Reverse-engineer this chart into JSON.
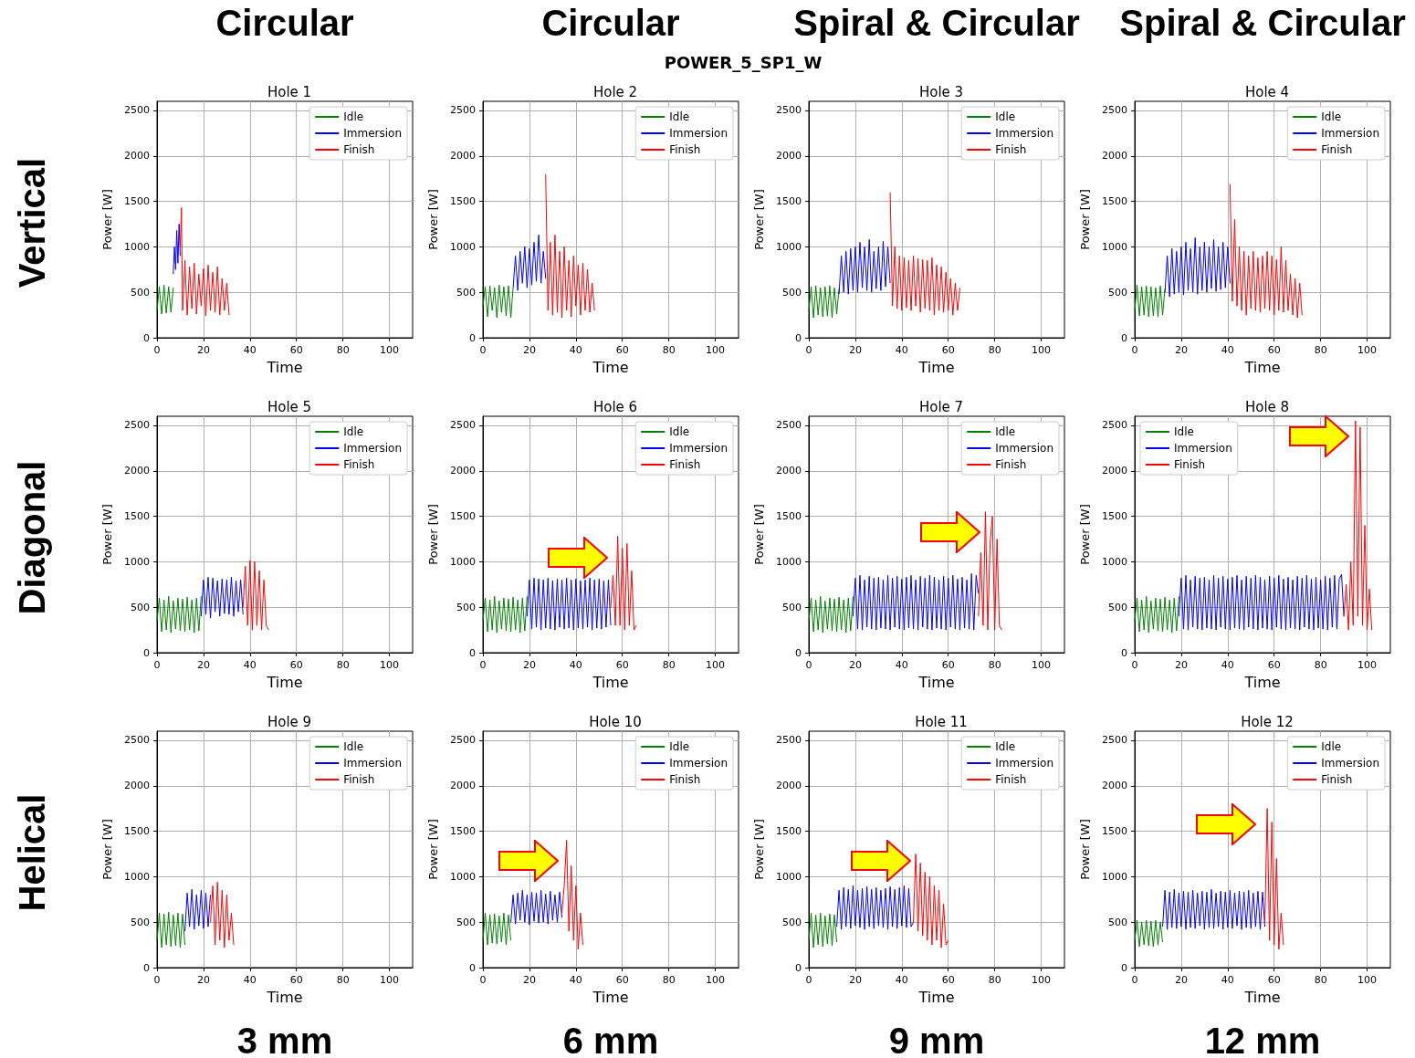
{
  "chart_data": [
    {
      "type": "line",
      "title": "Hole 1",
      "xlabel": "Time",
      "ylabel": "Power [W]",
      "xlim": [
        0,
        110
      ],
      "ylim": [
        0,
        2600
      ],
      "xticks": [
        0,
        20,
        40,
        60,
        80,
        100
      ],
      "yticks": [
        0,
        500,
        1000,
        1500,
        2000,
        2500
      ],
      "grid": true,
      "legend": "top right",
      "annotations": [
        "Circular",
        "Vertical"
      ],
      "series": [
        {
          "name": "Idle",
          "color": "#008000",
          "x": [
            0,
            1,
            2,
            3,
            4,
            5,
            6,
            7
          ],
          "values": [
            300,
            560,
            260,
            580,
            270,
            560,
            280,
            550
          ]
        },
        {
          "name": "Immersion",
          "color": "#0000ff",
          "x": [
            7,
            7.5,
            8,
            8.5,
            9,
            9.5,
            10
          ],
          "values": [
            700,
            1000,
            750,
            1180,
            820,
            1250,
            900
          ]
        },
        {
          "name": "Finish",
          "color": "#ff0000",
          "x": [
            10,
            10.5,
            11,
            12,
            13,
            14,
            15,
            16,
            17,
            18,
            19,
            20,
            21,
            22,
            23,
            24,
            25,
            26,
            27,
            28,
            29,
            30,
            31
          ],
          "values": [
            1000,
            1430,
            300,
            850,
            250,
            780,
            320,
            820,
            260,
            700,
            350,
            760,
            240,
            800,
            300,
            720,
            280,
            780,
            250,
            650,
            300,
            600,
            250
          ]
        }
      ]
    },
    {
      "type": "line",
      "title": "Hole 2",
      "xlabel": "Time",
      "ylabel": "Power [W]",
      "xlim": [
        0,
        110
      ],
      "ylim": [
        0,
        2600
      ],
      "xticks": [
        0,
        20,
        40,
        60,
        80,
        100
      ],
      "yticks": [
        0,
        500,
        1000,
        1500,
        2000,
        2500
      ],
      "grid": true,
      "legend": "top right",
      "annotations": [
        "Circular",
        "POWER_5_SP1_W"
      ],
      "series": [
        {
          "name": "Idle",
          "color": "#008000",
          "x": [
            0,
            1,
            2,
            3,
            4,
            5,
            6,
            7,
            8,
            9,
            10,
            11,
            12,
            13
          ],
          "values": [
            350,
            560,
            230,
            570,
            300,
            550,
            220,
            580,
            280,
            560,
            240,
            570,
            220,
            550
          ]
        },
        {
          "name": "Immersion",
          "color": "#0000ff",
          "x": [
            13,
            14,
            15,
            16,
            17,
            18,
            19,
            20,
            21,
            22,
            23,
            24,
            25,
            26,
            27
          ],
          "values": [
            550,
            900,
            520,
            950,
            600,
            1000,
            550,
            980,
            580,
            1050,
            620,
            1130,
            600,
            950,
            650
          ]
        },
        {
          "name": "Finish",
          "color": "#ff0000",
          "x": [
            27,
            28,
            29,
            30,
            31,
            32,
            33,
            34,
            35,
            36,
            37,
            38,
            39,
            40,
            41,
            42,
            43,
            44,
            45,
            46,
            47,
            48
          ],
          "values": [
            1800,
            300,
            1050,
            250,
            1130,
            280,
            950,
            220,
            1000,
            300,
            850,
            230,
            900,
            350,
            800,
            250,
            820,
            300,
            750,
            280,
            600,
            300
          ]
        }
      ]
    },
    {
      "type": "line",
      "title": "Hole 3",
      "xlabel": "Time",
      "ylabel": "Power [W]",
      "xlim": [
        0,
        110
      ],
      "ylim": [
        0,
        2600
      ],
      "xticks": [
        0,
        20,
        40,
        60,
        80,
        100
      ],
      "yticks": [
        0,
        500,
        1000,
        1500,
        2000,
        2500
      ],
      "grid": true,
      "legend": "top right",
      "annotations": [
        "Spiral & Circular"
      ],
      "series": [
        {
          "name": "Idle",
          "color": "#008000",
          "x": [
            0,
            1,
            2,
            3,
            4,
            5,
            6,
            7,
            8,
            9,
            10,
            11,
            12,
            13
          ],
          "values": [
            300,
            560,
            220,
            570,
            250,
            550,
            230,
            560,
            240,
            570,
            220,
            550,
            260,
            540
          ]
        },
        {
          "name": "Immersion",
          "color": "#0000ff",
          "x": [
            13,
            14,
            15,
            16,
            17,
            18,
            19,
            20,
            21,
            22,
            23,
            24,
            25,
            26,
            27,
            28,
            29,
            30,
            31,
            32,
            33,
            34,
            35
          ],
          "values": [
            480,
            900,
            500,
            950,
            480,
            980,
            520,
            1000,
            500,
            1050,
            550,
            1000,
            520,
            1080,
            500,
            950,
            540,
            1000,
            520,
            1060,
            560,
            1000,
            600
          ]
        },
        {
          "name": "Finish",
          "color": "#ff0000",
          "x": [
            35,
            36,
            37,
            38,
            39,
            40,
            41,
            42,
            43,
            44,
            45,
            46,
            47,
            48,
            49,
            50,
            51,
            52,
            53,
            54,
            55,
            56,
            57,
            58,
            59,
            60,
            61,
            62,
            63,
            64,
            65
          ],
          "values": [
            1600,
            350,
            1000,
            320,
            900,
            300,
            880,
            330,
            850,
            300,
            900,
            350,
            870,
            280,
            860,
            320,
            850,
            300,
            880,
            250,
            800,
            300,
            780,
            280,
            720,
            300,
            650,
            250,
            600,
            300,
            550
          ]
        }
      ]
    },
    {
      "type": "line",
      "title": "Hole 4",
      "xlabel": "Time",
      "ylabel": "Power [W]",
      "xlim": [
        0,
        110
      ],
      "ylim": [
        0,
        2600
      ],
      "xticks": [
        0,
        20,
        40,
        60,
        80,
        100
      ],
      "yticks": [
        0,
        500,
        1000,
        1500,
        2000,
        2500
      ],
      "grid": true,
      "legend": "top right",
      "annotations": [
        "Spiral & Circular"
      ],
      "series": [
        {
          "name": "Idle",
          "color": "#008000",
          "x": [
            0,
            1,
            2,
            3,
            4,
            5,
            6,
            7,
            8,
            9,
            10,
            11,
            12,
            13
          ],
          "values": [
            300,
            580,
            240,
            560,
            250,
            570,
            230,
            560,
            240,
            550,
            230,
            570,
            250,
            540
          ]
        },
        {
          "name": "Immersion",
          "color": "#0000ff",
          "x": [
            13,
            14,
            15,
            16,
            17,
            18,
            19,
            20,
            21,
            22,
            23,
            24,
            25,
            26,
            27,
            28,
            29,
            30,
            31,
            32,
            33,
            34,
            35,
            36,
            37,
            38,
            39,
            40,
            41
          ],
          "values": [
            500,
            900,
            450,
            980,
            480,
            950,
            500,
            1000,
            470,
            1050,
            520,
            980,
            500,
            1100,
            480,
            1000,
            520,
            1050,
            500,
            1000,
            540,
            1080,
            510,
            1000,
            530,
            1050,
            550,
            1000,
            600
          ]
        },
        {
          "name": "Finish",
          "color": "#ff0000",
          "x": [
            41,
            42,
            43,
            44,
            45,
            46,
            47,
            48,
            49,
            50,
            51,
            52,
            53,
            54,
            55,
            56,
            57,
            58,
            59,
            60,
            61,
            62,
            63,
            64,
            65,
            66,
            67,
            68,
            69,
            70,
            71,
            72
          ],
          "values": [
            1690,
            400,
            1300,
            350,
            1000,
            300,
            950,
            250,
            900,
            320,
            950,
            300,
            880,
            280,
            900,
            320,
            950,
            300,
            900,
            250,
            860,
            300,
            1000,
            280,
            850,
            300,
            700,
            250,
            650,
            220,
            600,
            250
          ]
        }
      ]
    },
    {
      "type": "line",
      "title": "Hole 5",
      "xlabel": "Time",
      "ylabel": "Power [W]",
      "xlim": [
        0,
        110
      ],
      "ylim": [
        0,
        2600
      ],
      "xticks": [
        0,
        20,
        40,
        60,
        80,
        100
      ],
      "yticks": [
        0,
        500,
        1000,
        1500,
        2000,
        2500
      ],
      "grid": true,
      "legend": "top right",
      "annotations": [
        "Diagonal"
      ],
      "series": [
        {
          "name": "Idle",
          "color": "#008000",
          "x": [
            0,
            1,
            2,
            3,
            4,
            5,
            6,
            7,
            8,
            9,
            10,
            11,
            12,
            13,
            14,
            15,
            16,
            17,
            18,
            19
          ],
          "values": [
            350,
            600,
            230,
            580,
            250,
            620,
            220,
            570,
            260,
            600,
            240,
            590,
            230,
            610,
            250,
            580,
            220,
            600,
            240,
            620
          ]
        },
        {
          "name": "Immersion",
          "color": "#0000ff",
          "x": [
            19,
            20,
            21,
            22,
            23,
            24,
            25,
            26,
            27,
            28,
            29,
            30,
            31,
            32,
            33,
            34,
            35,
            36,
            37
          ],
          "values": [
            400,
            800,
            420,
            830,
            380,
            820,
            450,
            790,
            400,
            810,
            430,
            800,
            420,
            830,
            400,
            790,
            450,
            800,
            420
          ]
        },
        {
          "name": "Finish",
          "color": "#ff0000",
          "x": [
            37,
            38,
            39,
            40,
            41,
            42,
            43,
            44,
            45,
            46,
            47,
            48
          ],
          "values": [
            500,
            950,
            300,
            1010,
            250,
            1000,
            300,
            900,
            250,
            800,
            300,
            250
          ]
        }
      ]
    },
    {
      "type": "line",
      "title": "Hole 6",
      "xlabel": "Time",
      "ylabel": "Power [W]",
      "xlim": [
        0,
        110
      ],
      "ylim": [
        0,
        2600
      ],
      "xticks": [
        0,
        20,
        40,
        60,
        80,
        100
      ],
      "yticks": [
        0,
        500,
        1000,
        1500,
        2000,
        2500
      ],
      "grid": true,
      "legend": "top right",
      "series": [
        {
          "name": "Idle",
          "color": "#008000",
          "x": [
            0,
            1,
            2,
            3,
            4,
            5,
            6,
            7,
            8,
            9,
            10,
            11,
            12,
            13,
            14,
            15,
            16,
            17,
            18,
            19
          ],
          "values": [
            350,
            600,
            230,
            580,
            250,
            620,
            220,
            570,
            260,
            600,
            240,
            590,
            230,
            610,
            250,
            580,
            220,
            600,
            240,
            620
          ]
        },
        {
          "name": "Immersion",
          "color": "#0000ff",
          "x": [
            19,
            20,
            21,
            22,
            23,
            24,
            25,
            26,
            27,
            28,
            29,
            30,
            31,
            32,
            33,
            34,
            35,
            36,
            37,
            38,
            39,
            40,
            41,
            42,
            43,
            44,
            45,
            46,
            47,
            48,
            49,
            50,
            51,
            52,
            53,
            54,
            55
          ],
          "values": [
            400,
            800,
            260,
            820,
            280,
            810,
            250,
            800,
            270,
            820,
            260,
            790,
            250,
            810,
            280,
            800,
            260,
            820,
            270,
            800,
            250,
            810,
            270,
            790,
            260,
            800,
            280,
            820,
            250,
            800,
            270,
            810,
            260,
            790,
            280,
            800,
            300
          ]
        },
        {
          "name": "Finish",
          "color": "#ff0000",
          "x": [
            55,
            56,
            57,
            58,
            59,
            60,
            61,
            62,
            63,
            64,
            65,
            66
          ],
          "values": [
            500,
            850,
            300,
            1280,
            300,
            1150,
            250,
            1200,
            300,
            900,
            250,
            300
          ]
        }
      ]
    },
    {
      "type": "line",
      "title": "Hole 7",
      "xlabel": "Time",
      "ylabel": "Power [W]",
      "xlim": [
        0,
        110
      ],
      "ylim": [
        0,
        2600
      ],
      "xticks": [
        0,
        20,
        40,
        60,
        80,
        100
      ],
      "yticks": [
        0,
        500,
        1000,
        1500,
        2000,
        2500
      ],
      "grid": true,
      "legend": "top right",
      "series": [
        {
          "name": "Idle",
          "color": "#008000",
          "x": [
            0,
            1,
            2,
            3,
            4,
            5,
            6,
            7,
            8,
            9,
            10,
            11,
            12,
            13,
            14,
            15,
            16,
            17,
            18,
            19
          ],
          "values": [
            350,
            600,
            230,
            580,
            250,
            620,
            220,
            570,
            260,
            600,
            240,
            590,
            230,
            610,
            250,
            580,
            220,
            600,
            240,
            620
          ]
        },
        {
          "name": "Immersion",
          "color": "#0000ff",
          "x": [
            19,
            20,
            21,
            22,
            23,
            24,
            25,
            26,
            27,
            28,
            29,
            30,
            31,
            32,
            33,
            34,
            35,
            36,
            37,
            38,
            39,
            40,
            41,
            42,
            43,
            44,
            45,
            46,
            47,
            48,
            49,
            50,
            51,
            52,
            53,
            54,
            55,
            56,
            57,
            58,
            59,
            60,
            61,
            62,
            63,
            64,
            65,
            66,
            67,
            68,
            69,
            70,
            71,
            72,
            73
          ],
          "values": [
            400,
            820,
            260,
            850,
            250,
            800,
            280,
            840,
            260,
            820,
            250,
            830,
            270,
            800,
            260,
            850,
            250,
            820,
            280,
            840,
            260,
            810,
            250,
            830,
            270,
            850,
            260,
            800,
            250,
            840,
            280,
            820,
            260,
            850,
            250,
            830,
            270,
            800,
            260,
            840,
            250,
            820,
            280,
            850,
            260,
            810,
            250,
            830,
            270,
            800,
            260,
            870,
            250,
            850,
            650
          ]
        },
        {
          "name": "Finish",
          "color": "#ff0000",
          "x": [
            73,
            74,
            75,
            76,
            77,
            78,
            79,
            80,
            81,
            82,
            83
          ],
          "values": [
            400,
            1100,
            300,
            1550,
            250,
            1200,
            1500,
            250,
            1250,
            300,
            250
          ]
        }
      ]
    },
    {
      "type": "line",
      "title": "Hole 8",
      "xlabel": "Time",
      "ylabel": "Power [W]",
      "xlim": [
        0,
        110
      ],
      "ylim": [
        0,
        2600
      ],
      "xticks": [
        0,
        20,
        40,
        60,
        80,
        100
      ],
      "yticks": [
        0,
        500,
        1000,
        1500,
        2000,
        2500
      ],
      "grid": true,
      "legend": "top left",
      "series": [
        {
          "name": "Idle",
          "color": "#008000",
          "x": [
            0,
            1,
            2,
            3,
            4,
            5,
            6,
            7,
            8,
            9,
            10,
            11,
            12,
            13,
            14,
            15,
            16,
            17,
            18,
            19
          ],
          "values": [
            350,
            600,
            230,
            580,
            250,
            620,
            220,
            570,
            260,
            600,
            240,
            590,
            230,
            610,
            250,
            580,
            220,
            600,
            240,
            620
          ]
        },
        {
          "name": "Immersion",
          "color": "#0000ff",
          "x": [
            19,
            20,
            21,
            22,
            23,
            24,
            25,
            26,
            27,
            28,
            29,
            30,
            31,
            32,
            33,
            34,
            35,
            36,
            37,
            38,
            39,
            40,
            41,
            42,
            43,
            44,
            45,
            46,
            47,
            48,
            49,
            50,
            51,
            52,
            53,
            54,
            55,
            56,
            57,
            58,
            59,
            60,
            61,
            62,
            63,
            64,
            65,
            66,
            67,
            68,
            69,
            70,
            71,
            72,
            73,
            74,
            75,
            76,
            77,
            78,
            79,
            80,
            81,
            82,
            83,
            84,
            85,
            86,
            87,
            88,
            89,
            90
          ],
          "values": [
            400,
            820,
            260,
            850,
            250,
            800,
            280,
            840,
            260,
            820,
            250,
            830,
            270,
            800,
            260,
            850,
            250,
            820,
            280,
            840,
            260,
            810,
            250,
            830,
            270,
            850,
            260,
            800,
            250,
            840,
            280,
            820,
            260,
            850,
            250,
            830,
            270,
            800,
            260,
            840,
            250,
            820,
            280,
            850,
            260,
            810,
            250,
            830,
            270,
            800,
            260,
            840,
            250,
            820,
            280,
            850,
            260,
            810,
            250,
            830,
            270,
            800,
            260,
            840,
            250,
            820,
            280,
            850,
            260,
            810,
            860,
            400
          ]
        },
        {
          "name": "Finish",
          "color": "#ff0000",
          "x": [
            90,
            91,
            92,
            93,
            94,
            95,
            96,
            97,
            98,
            99,
            100,
            101,
            102
          ],
          "values": [
            400,
            750,
            250,
            1000,
            300,
            2550,
            400,
            2480,
            300,
            1400,
            250,
            700,
            250
          ]
        }
      ]
    },
    {
      "type": "line",
      "title": "Hole 9",
      "xlabel": "Time",
      "ylabel": "Power [W]",
      "xlim": [
        0,
        110
      ],
      "ylim": [
        0,
        2600
      ],
      "xticks": [
        0,
        20,
        40,
        60,
        80,
        100
      ],
      "yticks": [
        0,
        500,
        1000,
        1500,
        2000,
        2500
      ],
      "grid": true,
      "legend": "top right",
      "annotations": [
        "Helical",
        "3 mm"
      ],
      "series": [
        {
          "name": "Idle",
          "color": "#008000",
          "x": [
            0,
            1,
            2,
            3,
            4,
            5,
            6,
            7,
            8,
            9,
            10,
            11,
            12
          ],
          "values": [
            300,
            600,
            220,
            590,
            250,
            610,
            230,
            580,
            240,
            600,
            220,
            590,
            250
          ]
        },
        {
          "name": "Immersion",
          "color": "#0000ff",
          "x": [
            12,
            13,
            14,
            15,
            16,
            17,
            18,
            19,
            20,
            21,
            22,
            23
          ],
          "values": [
            400,
            820,
            450,
            860,
            420,
            800,
            460,
            850,
            430,
            820,
            450,
            800
          ]
        },
        {
          "name": "Finish",
          "color": "#ff0000",
          "x": [
            23,
            24,
            25,
            26,
            27,
            28,
            29,
            30,
            31,
            32,
            33
          ],
          "values": [
            500,
            900,
            250,
            940,
            300,
            850,
            220,
            800,
            300,
            600,
            250
          ]
        }
      ]
    },
    {
      "type": "line",
      "title": "Hole 10",
      "xlabel": "Time",
      "ylabel": "Power [W]",
      "xlim": [
        0,
        110
      ],
      "ylim": [
        0,
        2600
      ],
      "xticks": [
        0,
        20,
        40,
        60,
        80,
        100
      ],
      "yticks": [
        0,
        500,
        1000,
        1500,
        2000,
        2500
      ],
      "grid": true,
      "legend": "top right",
      "annotations": [
        "6 mm"
      ],
      "series": [
        {
          "name": "Idle",
          "color": "#008000",
          "x": [
            0,
            1,
            2,
            3,
            4,
            5,
            6,
            7,
            8,
            9,
            10,
            11,
            12
          ],
          "values": [
            300,
            600,
            250,
            580,
            270,
            590,
            260,
            570,
            280,
            600,
            250,
            580,
            300
          ]
        },
        {
          "name": "Immersion",
          "color": "#0000ff",
          "x": [
            12,
            13,
            14,
            15,
            16,
            17,
            18,
            19,
            20,
            21,
            22,
            23,
            24,
            25,
            26,
            27,
            28,
            29,
            30,
            31,
            32,
            33,
            34
          ],
          "values": [
            500,
            800,
            480,
            820,
            520,
            850,
            500,
            800,
            470,
            830,
            510,
            820,
            490,
            850,
            500,
            810,
            480,
            840,
            520,
            800,
            500,
            830,
            550
          ]
        },
        {
          "name": "Finish",
          "color": "#ff0000",
          "x": [
            34,
            35,
            36,
            37,
            38,
            39,
            40,
            41,
            42,
            43
          ],
          "values": [
            600,
            900,
            1400,
            400,
            1120,
            300,
            900,
            200,
            600,
            250
          ]
        }
      ]
    },
    {
      "type": "line",
      "title": "Hole 11",
      "xlabel": "Time",
      "ylabel": "Power [W]",
      "xlim": [
        0,
        110
      ],
      "ylim": [
        0,
        2600
      ],
      "xticks": [
        0,
        20,
        40,
        60,
        80,
        100
      ],
      "yticks": [
        0,
        500,
        1000,
        1500,
        2000,
        2500
      ],
      "grid": true,
      "legend": "top right",
      "annotations": [
        "9 mm"
      ],
      "series": [
        {
          "name": "Idle",
          "color": "#008000",
          "x": [
            0,
            1,
            2,
            3,
            4,
            5,
            6,
            7,
            8,
            9,
            10,
            11,
            12
          ],
          "values": [
            300,
            600,
            220,
            580,
            250,
            600,
            230,
            570,
            260,
            590,
            240,
            580,
            280
          ]
        },
        {
          "name": "Immersion",
          "color": "#0000ff",
          "x": [
            12,
            13,
            14,
            15,
            16,
            17,
            18,
            19,
            20,
            21,
            22,
            23,
            24,
            25,
            26,
            27,
            28,
            29,
            30,
            31,
            32,
            33,
            34,
            35,
            36,
            37,
            38,
            39,
            40,
            41,
            42,
            43,
            44,
            45
          ],
          "values": [
            450,
            850,
            420,
            880,
            450,
            860,
            430,
            900,
            460,
            850,
            440,
            870,
            420,
            890,
            450,
            860,
            430,
            880,
            460,
            850,
            440,
            870,
            420,
            890,
            450,
            860,
            430,
            880,
            460,
            900,
            440,
            870,
            450,
            500
          ]
        },
        {
          "name": "Finish",
          "color": "#ff0000",
          "x": [
            45,
            46,
            47,
            48,
            49,
            50,
            51,
            52,
            53,
            54,
            55,
            56,
            57,
            58,
            59,
            60
          ],
          "values": [
            500,
            1250,
            400,
            1150,
            350,
            1050,
            300,
            1000,
            250,
            900,
            300,
            850,
            220,
            700,
            250,
            300
          ]
        }
      ]
    },
    {
      "type": "line",
      "title": "Hole 12",
      "xlabel": "Time",
      "ylabel": "Power [W]",
      "xlim": [
        0,
        110
      ],
      "ylim": [
        0,
        2600
      ],
      "xticks": [
        0,
        20,
        40,
        60,
        80,
        100
      ],
      "yticks": [
        0,
        500,
        1000,
        1500,
        2000,
        2500
      ],
      "grid": true,
      "legend": "top right",
      "annotations": [
        "12 mm"
      ],
      "series": [
        {
          "name": "Idle",
          "color": "#008000",
          "x": [
            0,
            1,
            2,
            3,
            4,
            5,
            6,
            7,
            8,
            9,
            10,
            11,
            12
          ],
          "values": [
            300,
            520,
            230,
            500,
            250,
            520,
            240,
            510,
            230,
            520,
            250,
            500,
            280
          ]
        },
        {
          "name": "Immersion",
          "color": "#0000ff",
          "x": [
            12,
            13,
            14,
            15,
            16,
            17,
            18,
            19,
            20,
            21,
            22,
            23,
            24,
            25,
            26,
            27,
            28,
            29,
            30,
            31,
            32,
            33,
            34,
            35,
            36,
            37,
            38,
            39,
            40,
            41,
            42,
            43,
            44,
            45,
            46,
            47,
            48,
            49,
            50,
            51,
            52,
            53,
            54,
            55,
            56
          ],
          "values": [
            450,
            850,
            420,
            830,
            440,
            860,
            430,
            820,
            450,
            840,
            420,
            830,
            440,
            850,
            430,
            820,
            460,
            840,
            420,
            830,
            440,
            860,
            430,
            820,
            450,
            840,
            420,
            830,
            440,
            850,
            430,
            820,
            460,
            840,
            420,
            830,
            440,
            850,
            430,
            820,
            450,
            840,
            420,
            830,
            450
          ]
        },
        {
          "name": "Finish",
          "color": "#ff0000",
          "x": [
            56,
            57,
            58,
            59,
            60,
            61,
            62,
            63,
            64
          ],
          "values": [
            500,
            1750,
            300,
            1600,
            250,
            1200,
            200,
            600,
            250
          ]
        }
      ]
    }
  ]
}
